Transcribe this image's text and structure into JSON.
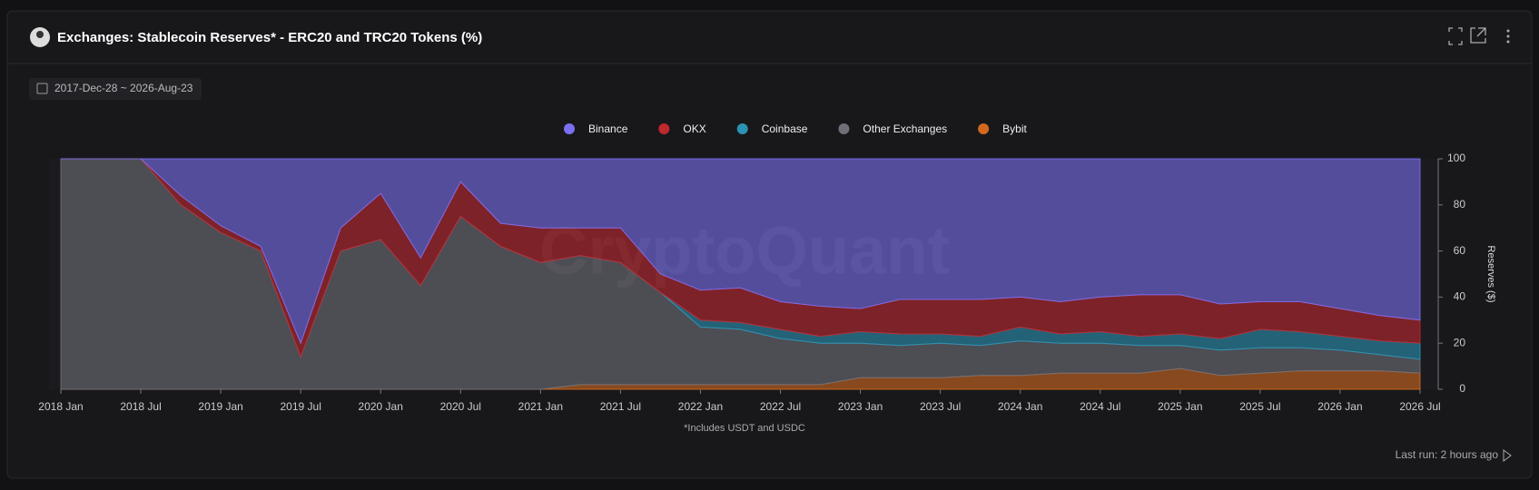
{
  "chart_data": {
    "type": "stacked-area",
    "title": "Exchanges: Stablecoin Reserves* - ERC20 and TRC20 Tokens (%)",
    "date_range": "2017-Dec-28 ~ 2026-Aug-23",
    "footnote": "*Includes USDT and USDC",
    "last_run": "Last run: 2 hours ago",
    "watermark": "CryptoQuant",
    "y_label": "Reserves ($)",
    "x": [
      "2018 Jan",
      "2018 Apr",
      "2018 Jul",
      "2018 Oct",
      "2019 Jan",
      "2019 Apr",
      "2019 Jul",
      "2019 Oct",
      "2020 Jan",
      "2020 Apr",
      "2020 Jul",
      "2020 Oct",
      "2021 Jan",
      "2021 Apr",
      "2021 Jul",
      "2021 Oct",
      "2022 Jan",
      "2022 Apr",
      "2022 Jul",
      "2022 Oct",
      "2023 Jan",
      "2023 Apr",
      "2023 Jul",
      "2023 Oct",
      "2024 Jan",
      "2024 Apr",
      "2024 Jul",
      "2024 Oct",
      "2025 Jan",
      "2025 Apr",
      "2025 Jul",
      "2025 Oct",
      "2026 Jan",
      "2026 Apr",
      "2026 Jul"
    ],
    "xticks": [
      "2018 Jan",
      "2018 Jul",
      "2019 Jan",
      "2019 Jul",
      "2020 Jan",
      "2020 Jul",
      "2021 Jan",
      "2021 Jul",
      "2022 Jan",
      "2022 Jul",
      "2023 Jan",
      "2023 Jul",
      "2024 Jan",
      "2024 Jul",
      "2025 Jan",
      "2025 Jul",
      "2026 Jan",
      "2026 Jul"
    ],
    "ylim": [
      0,
      100
    ],
    "yticks": [
      0,
      20,
      40,
      60,
      80,
      100
    ],
    "series": [
      {
        "name": "Binance",
        "color": "#7b6ff0",
        "values": [
          0,
          0,
          0,
          16,
          29,
          38,
          80,
          30,
          15,
          43,
          10,
          28,
          30,
          30,
          30,
          50,
          57,
          56,
          62,
          64,
          65,
          61,
          61,
          61,
          60,
          62,
          60,
          59,
          59,
          63,
          62,
          62,
          65,
          68,
          70
        ]
      },
      {
        "name": "OKX",
        "color": "#c0282e",
        "values": [
          0,
          0,
          0,
          4,
          3,
          2,
          6,
          10,
          20,
          12,
          15,
          10,
          15,
          12,
          15,
          8,
          13,
          15,
          12,
          13,
          10,
          15,
          15,
          16,
          13,
          14,
          15,
          18,
          17,
          15,
          12,
          13,
          12,
          11,
          10
        ]
      },
      {
        "name": "Coinbase",
        "color": "#2b93b3",
        "values": [
          0,
          0,
          0,
          0,
          0,
          0,
          0,
          0,
          0,
          0,
          0,
          0,
          0,
          0,
          0,
          0,
          3,
          3,
          4,
          3,
          5,
          5,
          4,
          4,
          6,
          4,
          5,
          4,
          5,
          5,
          8,
          7,
          6,
          6,
          7
        ]
      },
      {
        "name": "Other Exchanges",
        "color": "#6f6f78",
        "values": [
          100,
          100,
          100,
          80,
          68,
          60,
          14,
          60,
          65,
          45,
          75,
          62,
          55,
          56,
          53,
          40,
          25,
          24,
          20,
          18,
          15,
          14,
          15,
          13,
          15,
          13,
          13,
          12,
          10,
          11,
          11,
          10,
          9,
          7,
          6
        ]
      },
      {
        "name": "Bybit",
        "color": "#d2691e",
        "values": [
          0,
          0,
          0,
          0,
          0,
          0,
          0,
          0,
          0,
          0,
          0,
          0,
          0,
          2,
          2,
          2,
          2,
          2,
          2,
          2,
          5,
          5,
          5,
          6,
          6,
          7,
          7,
          7,
          9,
          6,
          7,
          8,
          8,
          8,
          7
        ]
      }
    ]
  }
}
